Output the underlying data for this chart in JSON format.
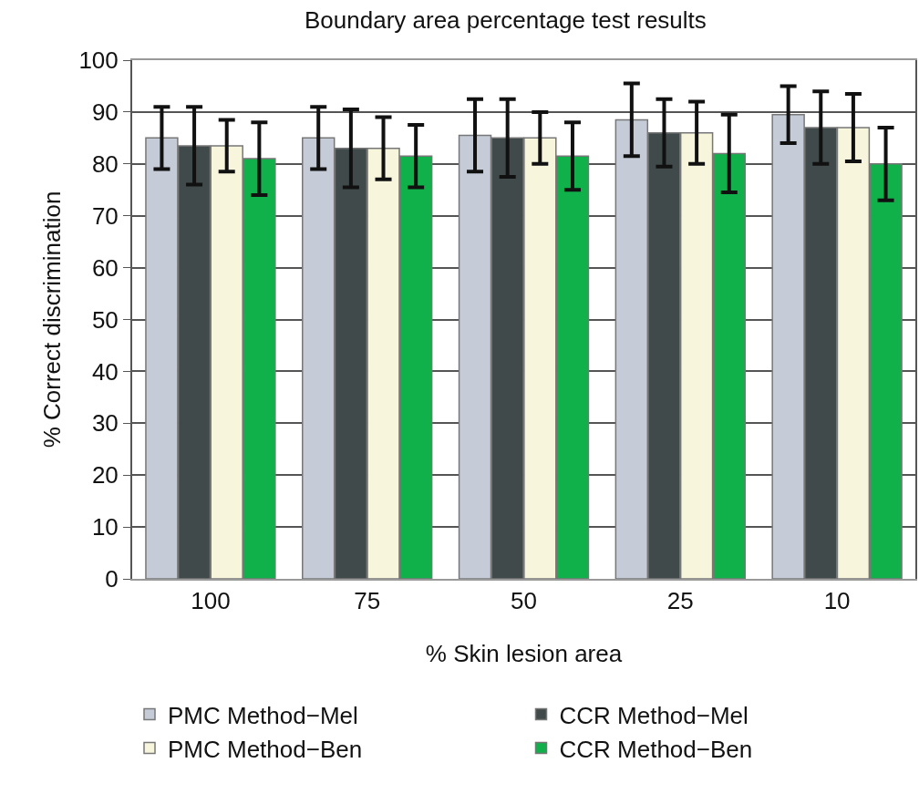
{
  "chart_data": {
    "type": "bar",
    "title": "Boundary area percentage test results",
    "xlabel": "% Skin lesion area",
    "ylabel": "% Correct discrimination",
    "categories": [
      "100",
      "75",
      "50",
      "25",
      "10"
    ],
    "series": [
      {
        "name": "PMC Method−Mel",
        "color": "#c5ccd8",
        "values": [
          85,
          85,
          85.5,
          88.5,
          89.5
        ],
        "errors": [
          6,
          6,
          7,
          7,
          5.5
        ]
      },
      {
        "name": "CCR Method−Mel",
        "color": "#404a4a",
        "values": [
          83.5,
          83,
          85,
          86,
          87
        ],
        "errors": [
          7.5,
          7.5,
          7.5,
          6.5,
          7
        ]
      },
      {
        "name": "PMC Method−Ben",
        "color": "#f7f5dc",
        "values": [
          83.5,
          83,
          85,
          86,
          87
        ],
        "errors": [
          5,
          6,
          5,
          6,
          6.5
        ]
      },
      {
        "name": "CCR Method−Ben",
        "color": "#10b04a",
        "values": [
          81,
          81.5,
          81.5,
          82,
          80
        ],
        "errors": [
          7,
          6,
          6.5,
          7.5,
          7
        ]
      }
    ],
    "ylim": [
      0,
      100
    ],
    "yticks": [
      0,
      10,
      20,
      30,
      40,
      50,
      60,
      70,
      80,
      90,
      100
    ],
    "grid": "y",
    "legend": "bottom"
  }
}
